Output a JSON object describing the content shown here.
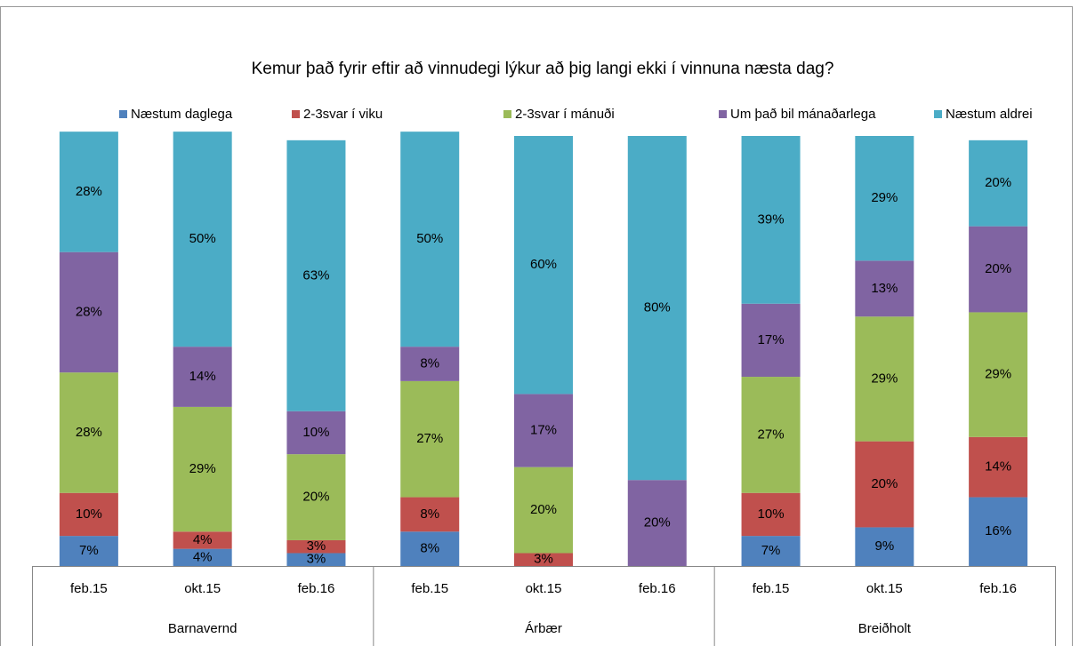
{
  "chart_data": {
    "type": "stacked_bar",
    "title": "Kemur það fyrir eftir að vinnudegi lýkur að þig langi ekki í vinnuna næsta dag?",
    "groups": [
      {
        "name": "Barnavernd",
        "categories": [
          "feb.15",
          "okt.15",
          "feb.16"
        ]
      },
      {
        "name": "Árbær",
        "categories": [
          "feb.15",
          "okt.15",
          "feb.16"
        ]
      },
      {
        "name": "Breiðholt",
        "categories": [
          "feb.15",
          "okt.15",
          "feb.16"
        ]
      }
    ],
    "ylim": [
      0,
      100
    ],
    "series": [
      {
        "name": "Næstum daglega",
        "color": "#4f81bd",
        "values": [
          7,
          4,
          3,
          8,
          null,
          null,
          7,
          9,
          16
        ],
        "value_labels": [
          "7%",
          "4%",
          "3%",
          "8%",
          null,
          null,
          "7%",
          "9%",
          "16%"
        ]
      },
      {
        "name": "2-3svar í viku",
        "color": "#c0504d",
        "values": [
          10,
          4,
          3,
          8,
          3,
          null,
          10,
          20,
          14
        ],
        "value_labels": [
          "10%",
          "4%",
          "3%",
          "8%",
          "3%",
          null,
          "10%",
          "20%",
          "14%"
        ]
      },
      {
        "name": "2-3svar í mánuði",
        "color": "#9bbb59",
        "values": [
          28,
          29,
          20,
          27,
          20,
          null,
          27,
          29,
          29
        ],
        "value_labels": [
          "28%",
          "29%",
          "20%",
          "27%",
          "20%",
          null,
          "27%",
          "29%",
          "29%"
        ]
      },
      {
        "name": "Um það bil mánaðarlega",
        "color": "#8064a2",
        "values": [
          28,
          14,
          10,
          8,
          17,
          20,
          17,
          13,
          20
        ],
        "value_labels": [
          "28%",
          "14%",
          "10%",
          "8%",
          "17%",
          "20%",
          "17%",
          "13%",
          "20%"
        ]
      },
      {
        "name": "Næstum aldrei",
        "color": "#4bacc6",
        "values": [
          28,
          50,
          63,
          50,
          60,
          80,
          39,
          29,
          20
        ],
        "value_labels": [
          "28%",
          "50%",
          "63%",
          "50%",
          "60%",
          "80%",
          "39%",
          "29%",
          "20%"
        ]
      }
    ]
  }
}
